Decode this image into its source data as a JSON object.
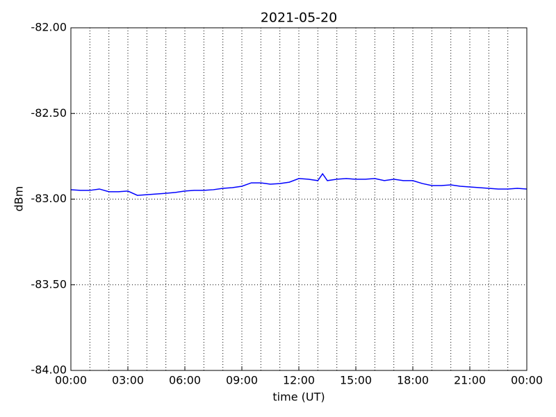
{
  "chart_data": {
    "type": "line",
    "title": "2021-05-20",
    "xlabel": "time (UT)",
    "ylabel": "dBm",
    "x": [
      0,
      0.5,
      1,
      1.5,
      2,
      2.5,
      3,
      3.5,
      4,
      4.5,
      5,
      5.5,
      6,
      6.5,
      7,
      7.5,
      8,
      8.5,
      9,
      9.5,
      10,
      10.5,
      11,
      11.5,
      12,
      12.5,
      13,
      13.25,
      13.5,
      14,
      14.5,
      15,
      15.5,
      16,
      16.5,
      17,
      17.5,
      18,
      18.5,
      19,
      19.5,
      20,
      20.5,
      21,
      21.5,
      22,
      22.5,
      23,
      23.5,
      24
    ],
    "series": [
      {
        "name": "dBm",
        "color": "#0000ff",
        "values": [
          -82.945,
          -82.949,
          -82.949,
          -82.941,
          -82.957,
          -82.957,
          -82.953,
          -82.978,
          -82.974,
          -82.97,
          -82.966,
          -82.961,
          -82.953,
          -82.949,
          -82.949,
          -82.945,
          -82.937,
          -82.933,
          -82.925,
          -82.905,
          -82.905,
          -82.913,
          -82.909,
          -82.901,
          -82.88,
          -82.884,
          -82.892,
          -82.852,
          -82.892,
          -82.884,
          -82.88,
          -82.884,
          -82.884,
          -82.88,
          -82.892,
          -82.884,
          -82.892,
          -82.892,
          -82.909,
          -82.921,
          -82.921,
          -82.917,
          -82.925,
          -82.929,
          -82.933,
          -82.937,
          -82.941,
          -82.941,
          -82.937,
          -82.941
        ]
      }
    ],
    "xlim": [
      0,
      24
    ],
    "xticks": [
      {
        "value": 0,
        "label": "00:00"
      },
      {
        "value": 3,
        "label": "03:00"
      },
      {
        "value": 6,
        "label": "06:00"
      },
      {
        "value": 9,
        "label": "09:00"
      },
      {
        "value": 12,
        "label": "12:00"
      },
      {
        "value": 15,
        "label": "15:00"
      },
      {
        "value": 18,
        "label": "18:00"
      },
      {
        "value": 21,
        "label": "21:00"
      },
      {
        "value": 24,
        "label": "00:00"
      }
    ],
    "xminorticks": [
      1,
      2,
      4,
      5,
      7,
      8,
      10,
      11,
      13,
      14,
      16,
      17,
      19,
      20,
      22,
      23
    ],
    "ylim": [
      -84,
      -82
    ],
    "yticks": [
      {
        "value": -84,
        "label": "-84.00"
      },
      {
        "value": -83.5,
        "label": "-83.50"
      },
      {
        "value": -83,
        "label": "-83.00"
      },
      {
        "value": -82.5,
        "label": "-82.50"
      },
      {
        "value": -82,
        "label": "-82.00"
      }
    ],
    "grid": true
  }
}
